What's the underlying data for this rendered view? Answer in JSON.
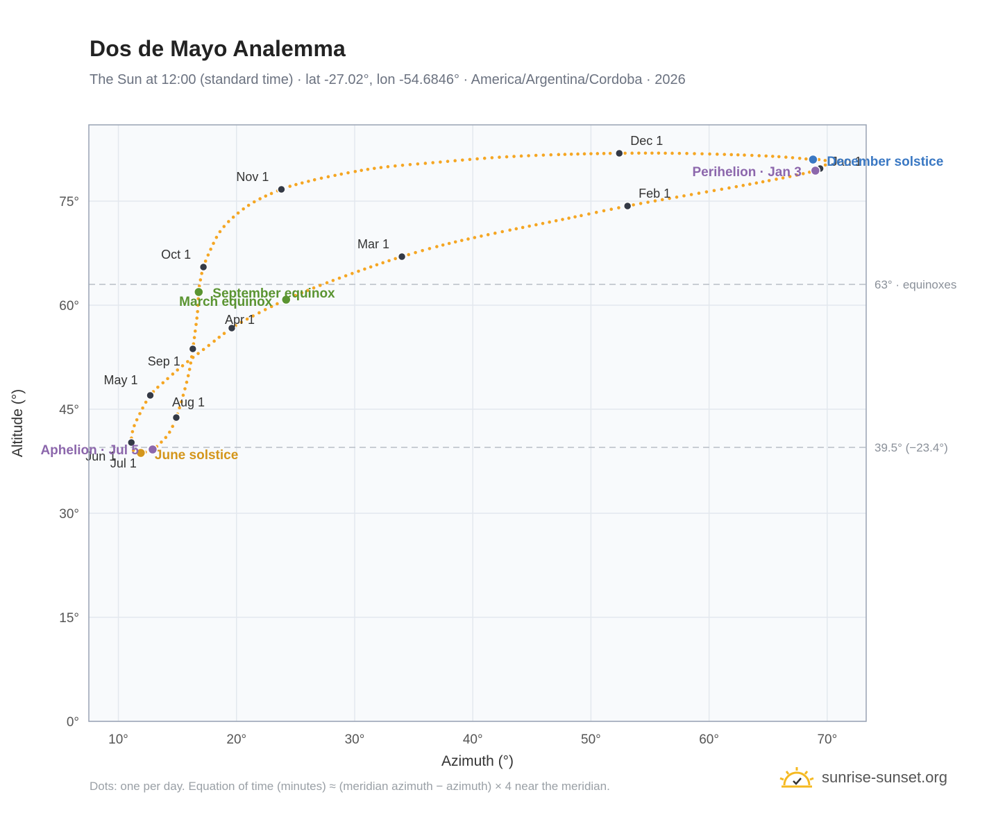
{
  "title": "Dos de Mayo Analemma",
  "subtitle": "The Sun at 12:00 (standard time) · lat -27.02°, lon -54.6846° · America/Argentina/Cordoba · 2026",
  "footnote": "Dots: one per day. Equation of time (minutes) ≈ (meridian azimuth − azimuth) × 4 near the meridian.",
  "brand": {
    "text": "sunrise-sunset.org",
    "icon": "sun-logo-icon"
  },
  "colors": {
    "path": "#f5a623",
    "month": "#343a46",
    "equinox": "#5a9431",
    "june_solstice": "#d4961b",
    "december_solstice": "#3a78c3",
    "apsis": "#8c67ac",
    "refline": "#b8bec6",
    "plot_bg": "#f8fafc",
    "frame": "#98a2b3"
  },
  "chart_data": {
    "type": "scatter",
    "xlabel": "Azimuth (°)",
    "ylabel": "Altitude (°)",
    "xlim": [
      7.5,
      73.3
    ],
    "ylim": [
      0,
      86
    ],
    "xticks": [
      10,
      20,
      30,
      40,
      50,
      60,
      70
    ],
    "yticks": [
      0,
      15,
      30,
      45,
      60,
      75
    ],
    "tick_suffix": "°",
    "grid": true,
    "reference_lines": [
      {
        "y": 63,
        "label": "63° · equinoxes"
      },
      {
        "y": 39.5,
        "label": "39.5° (−23.4°)"
      }
    ],
    "month_markers": [
      {
        "label": "Jan 1",
        "x": 69.4,
        "y": 79.7
      },
      {
        "label": "Feb 1",
        "x": 53.1,
        "y": 74.3
      },
      {
        "label": "Mar 1",
        "x": 34.0,
        "y": 67.0
      },
      {
        "label": "Apr 1",
        "x": 19.6,
        "y": 56.7
      },
      {
        "label": "May 1",
        "x": 12.7,
        "y": 47.0
      },
      {
        "label": "Jun 1",
        "x": 11.1,
        "y": 40.2
      },
      {
        "label": "Jul 1",
        "x": 11.9,
        "y": 38.7
      },
      {
        "label": "Aug 1",
        "x": 14.9,
        "y": 43.8
      },
      {
        "label": "Sep 1",
        "x": 16.3,
        "y": 53.7
      },
      {
        "label": "Oct 1",
        "x": 17.2,
        "y": 65.5
      },
      {
        "label": "Nov 1",
        "x": 23.8,
        "y": 76.7
      },
      {
        "label": "Dec 1",
        "x": 52.4,
        "y": 81.9
      }
    ],
    "events": [
      {
        "label": "March equinox",
        "x": 24.2,
        "y": 60.8,
        "kind": "equinox"
      },
      {
        "label": "September equinox",
        "x": 16.8,
        "y": 61.9,
        "kind": "equinox"
      },
      {
        "label": "June solstice",
        "x": 11.9,
        "y": 38.7,
        "kind": "june"
      },
      {
        "label": "December solstice",
        "x": 68.8,
        "y": 81.0,
        "kind": "december"
      },
      {
        "label": "Aphelion · Jul 5",
        "x": 12.9,
        "y": 39.2,
        "kind": "apsis"
      },
      {
        "label": "Perihelion · Jan 3",
        "x": 69.0,
        "y": 79.4,
        "kind": "apsis"
      }
    ],
    "path_points": [
      [
        69.4,
        79.7
      ],
      [
        70.0,
        80.5
      ],
      [
        69.6,
        81.0
      ],
      [
        68.8,
        81.0
      ],
      [
        66.0,
        81.4
      ],
      [
        62.0,
        81.7
      ],
      [
        57.0,
        81.9
      ],
      [
        52.4,
        81.9
      ],
      [
        47.0,
        81.7
      ],
      [
        42.0,
        81.3
      ],
      [
        37.0,
        80.6
      ],
      [
        32.0,
        79.8
      ],
      [
        28.0,
        78.6
      ],
      [
        25.5,
        77.6
      ],
      [
        23.8,
        76.7
      ],
      [
        21.5,
        74.9
      ],
      [
        19.8,
        72.8
      ],
      [
        18.6,
        70.6
      ],
      [
        17.8,
        68.0
      ],
      [
        17.2,
        65.5
      ],
      [
        16.9,
        63.2
      ],
      [
        16.8,
        61.9
      ],
      [
        16.7,
        59.0
      ],
      [
        16.5,
        56.2
      ],
      [
        16.3,
        53.7
      ],
      [
        16.0,
        50.5
      ],
      [
        15.5,
        47.1
      ],
      [
        14.9,
        43.8
      ],
      [
        14.3,
        41.6
      ],
      [
        13.6,
        40.2
      ],
      [
        12.9,
        39.2
      ],
      [
        11.9,
        38.7
      ],
      [
        11.3,
        39.0
      ],
      [
        11.1,
        40.2
      ],
      [
        11.2,
        41.8
      ],
      [
        11.6,
        43.6
      ],
      [
        12.7,
        47.0
      ],
      [
        14.1,
        49.3
      ],
      [
        15.6,
        51.5
      ],
      [
        17.5,
        54.0
      ],
      [
        19.6,
        56.7
      ],
      [
        21.8,
        58.8
      ],
      [
        24.2,
        60.8
      ],
      [
        27.0,
        62.8
      ],
      [
        30.5,
        65.0
      ],
      [
        34.0,
        67.0
      ],
      [
        38.0,
        68.9
      ],
      [
        42.5,
        70.6
      ],
      [
        48.0,
        72.5
      ],
      [
        53.1,
        74.3
      ],
      [
        58.0,
        75.8
      ],
      [
        63.0,
        77.3
      ],
      [
        67.0,
        78.6
      ],
      [
        69.0,
        79.4
      ],
      [
        69.4,
        79.7
      ]
    ]
  }
}
